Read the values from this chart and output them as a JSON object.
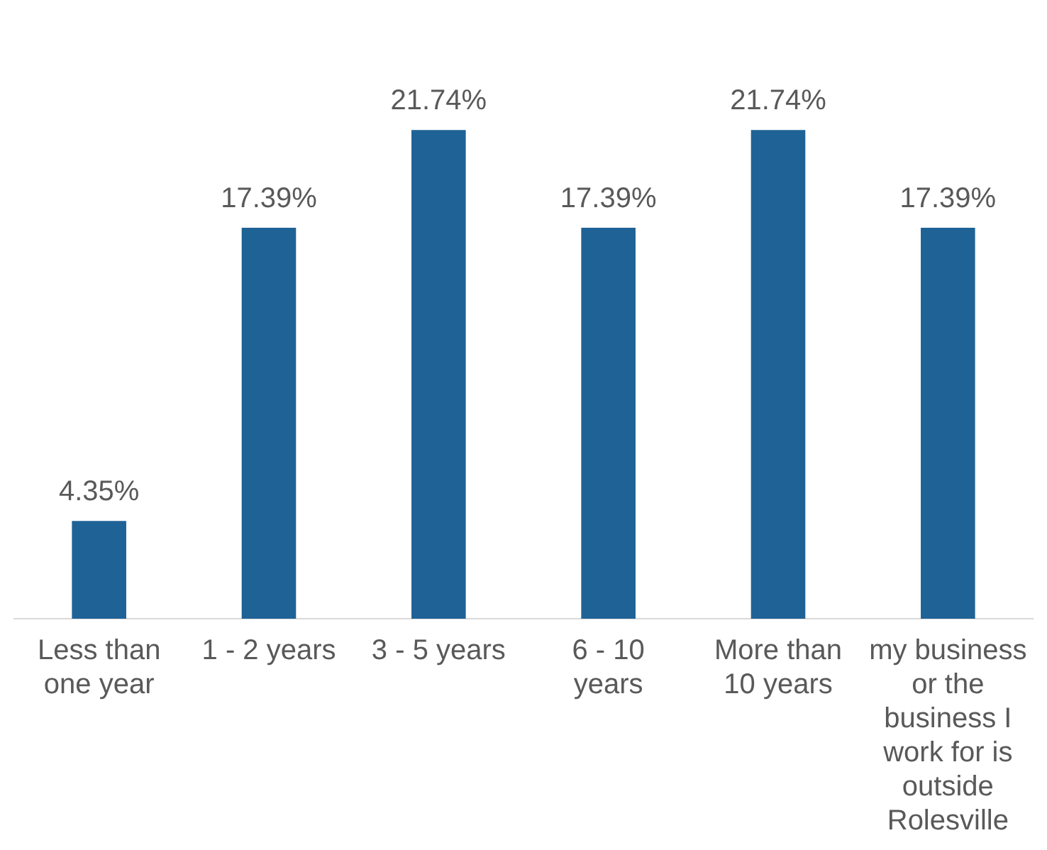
{
  "chart_data": {
    "type": "bar",
    "categories": [
      "Less than one year",
      "1 - 2 years",
      "3 - 5 years",
      "6 - 10 years",
      "More than 10 years",
      "my business or the business I work for is outside Rolesville"
    ],
    "values": [
      4.35,
      17.39,
      21.74,
      17.39,
      21.74,
      17.39
    ],
    "value_labels": [
      "4.35%",
      "17.39%",
      "21.74%",
      "17.39%",
      "21.74%",
      "17.39%"
    ],
    "color": "#1f6296",
    "grid": false,
    "legend": false
  }
}
